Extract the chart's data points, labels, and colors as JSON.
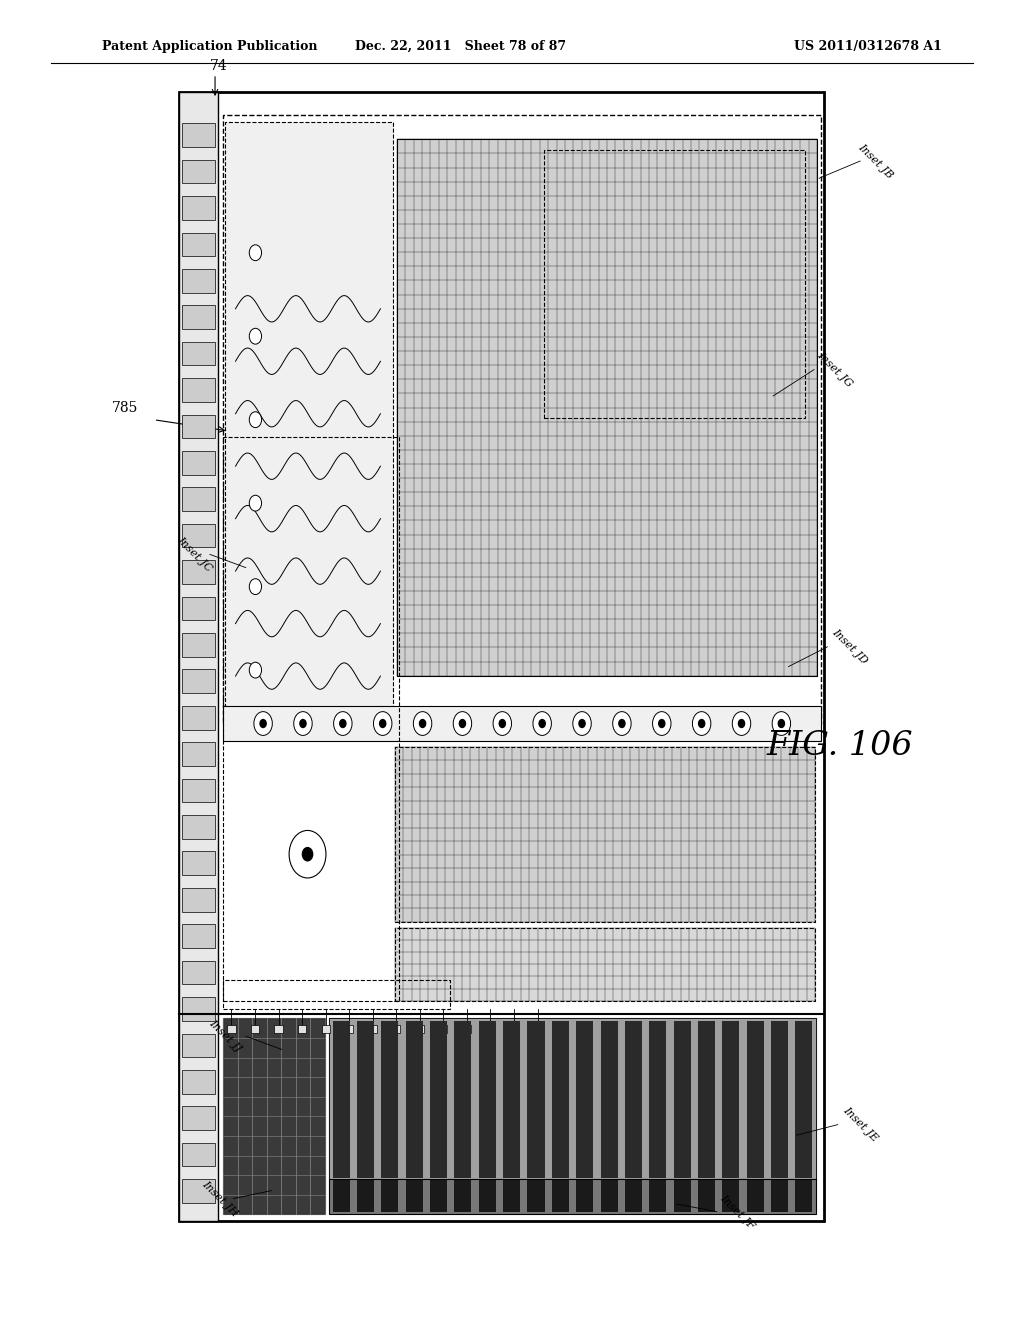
{
  "bg_color": "#ffffff",
  "header_left": "Patent Application Publication",
  "header_mid": "Dec. 22, 2011   Sheet 78 of 87",
  "header_right": "US 2011/0312678 A1",
  "fig_label": "FIG. 106",
  "ref_785": "785",
  "ref_74": "74",
  "inset_labels": [
    "Inset JB",
    "Inset JG",
    "Inset JC",
    "Inset JD",
    "Inset JJ",
    "Inset JE",
    "Inset JH",
    "Inset JF"
  ]
}
